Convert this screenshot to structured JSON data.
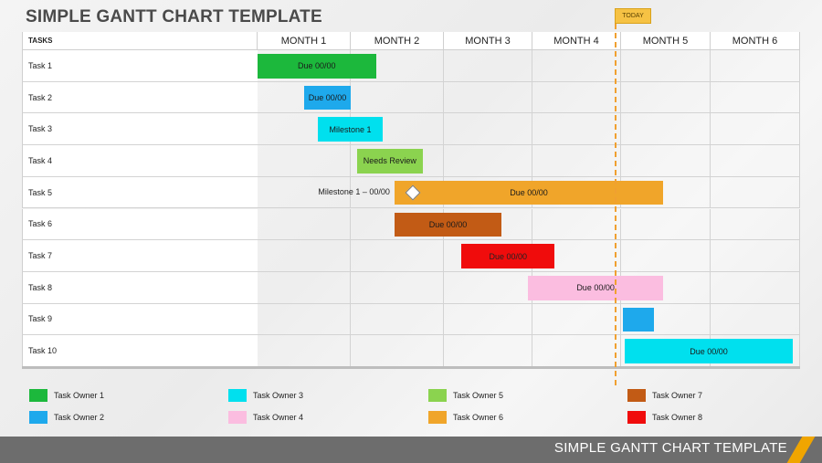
{
  "title": "SIMPLE GANTT CHART TEMPLATE",
  "today_label": "TODAY",
  "footer_title": "SIMPLE GANTT CHART TEMPLATE",
  "chart_data": {
    "type": "gantt",
    "tasks_header": "TASKS",
    "months": [
      "MONTH 1",
      "MONTH 2",
      "MONTH 3",
      "MONTH 4",
      "MONTH 5",
      "MONTH 6"
    ],
    "today": 4.0,
    "tasks": [
      {
        "name": "Task 1",
        "start": 0.0,
        "end": 1.27,
        "label": "Due 00/00",
        "owner": "Task Owner 1"
      },
      {
        "name": "Task 2",
        "start": 0.5,
        "end": 1.0,
        "label": "Due 00/00",
        "owner": "Task Owner 2"
      },
      {
        "name": "Task 3",
        "start": 0.65,
        "end": 1.34,
        "label": "Milestone 1",
        "owner": "Task Owner 3"
      },
      {
        "name": "Task 4",
        "start": 1.07,
        "end": 1.77,
        "label": "Needs Review",
        "owner": "Task Owner 5"
      },
      {
        "name": "Task 5",
        "start": 1.47,
        "end": 4.47,
        "label": "Due 00/00",
        "owner": "Task Owner 6",
        "milestone": {
          "at": 1.47,
          "label": "Milestone 1 – 00/00"
        }
      },
      {
        "name": "Task 6",
        "start": 1.47,
        "end": 2.65,
        "label": "Due 00/00",
        "owner": "Task Owner 7"
      },
      {
        "name": "Task 7",
        "start": 2.2,
        "end": 3.25,
        "label": "Due 00/00",
        "owner": "Task Owner 8"
      },
      {
        "name": "Task 8",
        "start": 2.95,
        "end": 4.47,
        "label": "Due 00/00",
        "owner": "Task Owner 4"
      },
      {
        "name": "Task 9",
        "start": 4.02,
        "end": 4.37,
        "label": "",
        "owner": "Task Owner 2"
      },
      {
        "name": "Task 10",
        "start": 4.04,
        "end": 5.92,
        "label": "Due 00/00",
        "owner": "Task Owner 3"
      }
    ],
    "legend": [
      {
        "label": "Task Owner 1",
        "color": "#1cb83c"
      },
      {
        "label": "Task Owner 2",
        "color": "#1ea9ec"
      },
      {
        "label": "Task Owner 3",
        "color": "#00e0ee"
      },
      {
        "label": "Task Owner 4",
        "color": "#fbbde0"
      },
      {
        "label": "Task Owner 5",
        "color": "#8bd34f"
      },
      {
        "label": "Task Owner 6",
        "color": "#f0a52a"
      },
      {
        "label": "Task Owner 7",
        "color": "#c25b15"
      },
      {
        "label": "Task Owner 8",
        "color": "#f00c0c"
      }
    ]
  }
}
